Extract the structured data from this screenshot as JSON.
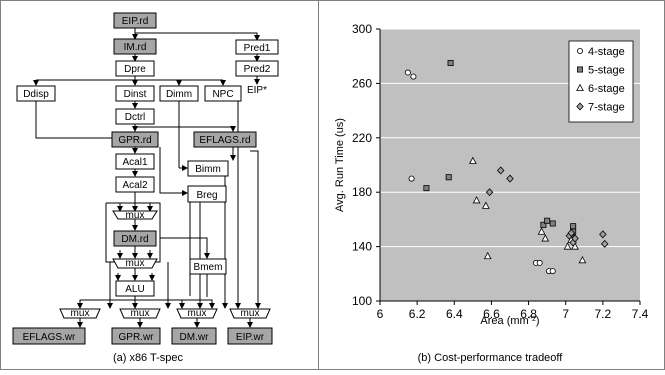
{
  "diagram": {
    "caption": "(a) x86 T-spec",
    "blocks": {
      "eip_rd": "EIP.rd",
      "im_rd": "IM.rd",
      "pred1": "Pred1",
      "dpre": "Dpre",
      "pred2": "Pred2",
      "eip_star": "EIP*",
      "ddisp": "Ddisp",
      "dinst": "Dinst",
      "dimm": "Dimm",
      "npc": "NPC",
      "dctrl": "Dctrl",
      "gpr_rd": "GPR.rd",
      "eflags_rd": "EFLAGS.rd",
      "acal1": "Acal1",
      "bimm": "Bimm",
      "acal2": "Acal2",
      "breg": "Breg",
      "mux1": "mux",
      "dm_rd": "DM.rd",
      "mux2": "mux",
      "bmem": "Bmem",
      "alu": "ALU",
      "mux3": "mux",
      "mux4": "mux",
      "mux5": "mux",
      "mux6": "mux",
      "eflags_wr": "EFLAGS.wr",
      "gpr_wr": "GPR.wr",
      "dm_wr": "DM.wr",
      "eip_wr": "EIP.wr"
    }
  },
  "chart": {
    "caption": "(b) Cost-performance tradeoff",
    "x_label_pre": "Area (mm",
    "x_label_sup": "^2",
    "x_label_post": ")",
    "y_label": "Avg. Run Time (us)",
    "x_ticks": [
      "6",
      "6.2",
      "6.4",
      "6.6",
      "6.8",
      "7",
      "7.2",
      "7.4"
    ],
    "y_ticks": [
      "100",
      "140",
      "180",
      "220",
      "260",
      "300"
    ]
  },
  "chart_data": {
    "type": "scatter",
    "xlim": [
      6,
      7.4
    ],
    "ylim": [
      100,
      300
    ],
    "grid": "horizontal",
    "legend_position": "top-right",
    "plot_background": "#c0c0c0",
    "series": [
      {
        "name": "4-stage",
        "marker": "circle",
        "color": "#ffffff",
        "x": [
          6.15,
          6.18,
          6.17,
          6.84,
          6.86,
          6.91,
          6.93
        ],
        "y": [
          268,
          265,
          190,
          128,
          128,
          122,
          122
        ]
      },
      {
        "name": "5-stage",
        "marker": "square",
        "color": "#808080",
        "x": [
          6.38,
          6.25,
          6.37,
          6.88,
          6.9,
          6.93,
          7.04,
          7.04,
          7.03
        ],
        "y": [
          275,
          183,
          191,
          156,
          159,
          157,
          155,
          151,
          148
        ]
      },
      {
        "name": "6-stage",
        "marker": "triangle",
        "color": "#ffffff",
        "x": [
          6.5,
          6.52,
          6.57,
          6.58,
          6.87,
          6.89,
          7.01,
          7.03,
          7.05,
          7.09
        ],
        "y": [
          203,
          174,
          170,
          133,
          151,
          146,
          140,
          145,
          140,
          130
        ]
      },
      {
        "name": "7-stage",
        "marker": "diamond",
        "color": "#a0a0a0",
        "x": [
          6.59,
          6.65,
          6.7,
          7.02,
          7.04,
          7.03,
          7.05,
          7.2,
          7.21
        ],
        "y": [
          180,
          196,
          190,
          148,
          143,
          150,
          146,
          149,
          142
        ]
      }
    ]
  }
}
